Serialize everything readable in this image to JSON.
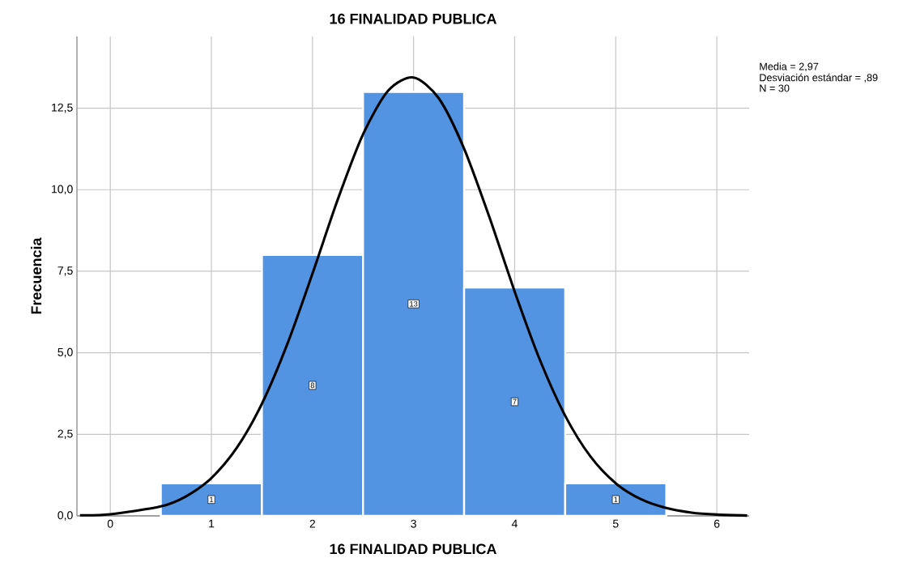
{
  "chart_data": {
    "type": "histogram",
    "title": "16 FINALIDAD PUBLICA",
    "xlabel": "16 FINALIDAD PUBLICA",
    "ylabel": "Frecuencia",
    "bins": [
      0.5,
      1.5,
      2.5,
      3.5,
      4.5,
      5.5
    ],
    "values": [
      1,
      8,
      13,
      7,
      1
    ],
    "color": "#5294e2",
    "value_labels": [
      "1",
      "8",
      "13",
      "7",
      "1"
    ],
    "series": [
      {
        "type": "line",
        "color": "#000000",
        "x": [
          -0.3,
          0,
          0.5,
          0.75,
          1,
          1.25,
          1.5,
          1.75,
          2,
          2.25,
          2.5,
          2.75,
          3,
          3.25,
          3.5,
          3.75,
          4,
          4.25,
          4.5,
          4.75,
          5,
          5.25,
          5.5,
          5.75,
          6,
          6.3
        ],
        "values": [
          0.02,
          0.05,
          0.29,
          0.6,
          1.16,
          2.08,
          3.44,
          5.26,
          7.43,
          9.7,
          11.7,
          13.04,
          13.44,
          12.8,
          11.26,
          9.16,
          6.88,
          4.78,
          3.07,
          1.82,
          1.0,
          0.51,
          0.24,
          0.1,
          0.04,
          0.01
        ]
      }
    ],
    "annotations": [
      "Media = 2,97",
      "Desviación estándar = ,89",
      "N = 30"
    ],
    "xlim": [
      -0.33,
      6.32
    ],
    "ylim": [
      0,
      14.7
    ],
    "xticks": [
      0,
      1,
      2,
      3,
      4,
      5,
      6
    ],
    "yticks": [
      {
        "value": 0,
        "label": "0,0"
      },
      {
        "value": 2.5,
        "label": "2,5"
      },
      {
        "value": 5,
        "label": "5,0"
      },
      {
        "value": 7.5,
        "label": "7,5"
      },
      {
        "value": 10,
        "label": "10,0"
      },
      {
        "value": 12.5,
        "label": "12,5"
      }
    ],
    "grid": true
  }
}
